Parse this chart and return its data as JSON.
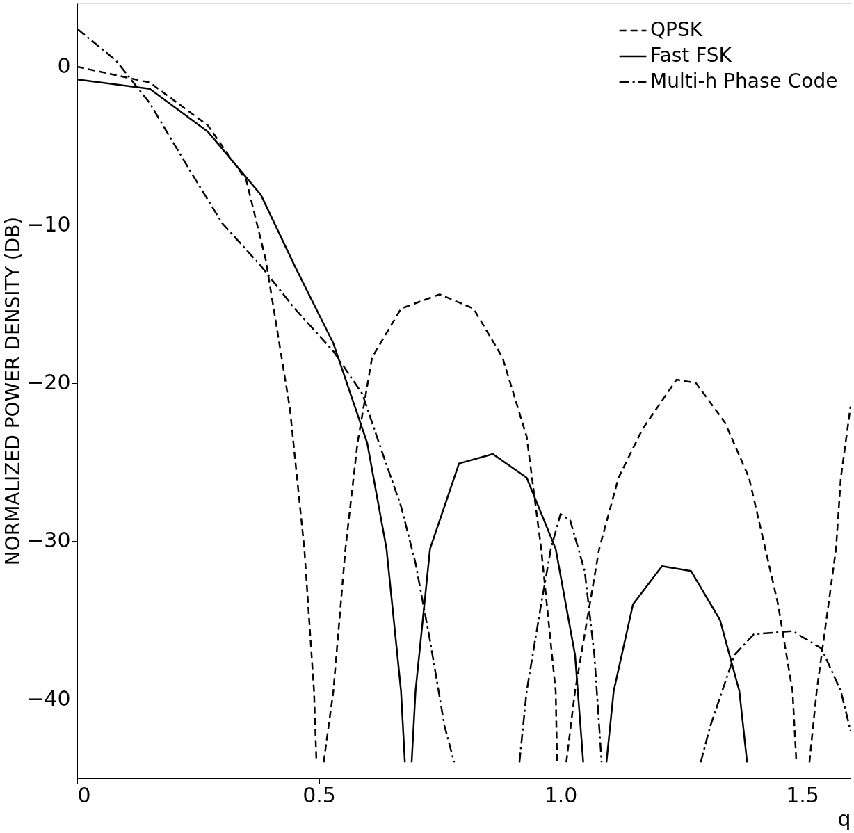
{
  "chart_data": {
    "type": "line",
    "xlabel": "q",
    "ylabel": "NORMALIZED POWER DENSITY (DB)",
    "xlim": [
      0,
      1.6
    ],
    "ylim": [
      -45,
      4
    ],
    "xticks": [
      0,
      0.5,
      {
        "value": 1,
        "label": "1.0"
      },
      1.5
    ],
    "yticks": [
      0,
      -10,
      -20,
      -30,
      -40
    ],
    "grid": false,
    "legend": "top right",
    "marker": "none",
    "series": [
      {
        "name": "QPSK",
        "color": "#000000",
        "line_style": "dashed",
        "x": [
          0,
          0.15,
          0.27,
          0.35,
          0.39,
          0.44,
          0.47,
          0.49,
          0.495,
          0.5,
          0.51,
          0.53,
          0.555,
          0.58,
          0.61,
          0.67,
          0.75,
          0.82,
          0.88,
          0.93,
          0.96,
          0.99,
          0.993,
          1.0,
          1.012,
          1.03,
          1.08,
          1.12,
          1.17,
          1.24,
          1.28,
          1.34,
          1.39,
          1.45,
          1.48,
          1.488,
          1.5,
          1.515,
          1.53,
          1.57,
          1.58,
          1.6
        ],
        "values": [
          0,
          -1,
          -3.7,
          -7.2,
          -12.2,
          -21.6,
          -30.5,
          -39.5,
          -44,
          null,
          -44,
          -39.5,
          -30.5,
          -23.8,
          -18.4,
          -15.3,
          -14.4,
          -15.3,
          -18.4,
          -23.4,
          -30.5,
          -39.5,
          -44,
          null,
          -44,
          -39.5,
          -30.5,
          -26,
          -22.9,
          -19.8,
          -20,
          -22.5,
          -26,
          -34,
          -39.5,
          -44,
          null,
          -44,
          -39.5,
          -30.5,
          -26,
          -21.5
        ]
      },
      {
        "name": "Fast FSK",
        "color": "#000000",
        "line_style": "solid",
        "x": [
          0,
          0.15,
          0.27,
          0.38,
          0.45,
          0.53,
          0.6,
          0.64,
          0.67,
          0.678,
          0.685,
          0.692,
          0.7,
          0.73,
          0.79,
          0.86,
          0.93,
          0.99,
          1.03,
          1.047,
          1.07,
          1.095,
          1.11,
          1.15,
          1.21,
          1.27,
          1.33,
          1.37,
          1.386
        ],
        "values": [
          -0.8,
          -1.4,
          -4.1,
          -8.1,
          -12.6,
          -17.5,
          -23.8,
          -30.5,
          -39.5,
          -44,
          null,
          -44,
          -39.5,
          -30.5,
          -25.1,
          -24.5,
          -26,
          -30.5,
          -37.2,
          -44,
          null,
          -44,
          -39.5,
          -34,
          -31.6,
          -31.9,
          -35,
          -39.5,
          -44
        ]
      },
      {
        "name": "Multi-h Phase Code",
        "color": "#000000",
        "line_style": "dashdot",
        "x": [
          0,
          0.08,
          0.15,
          0.23,
          0.3,
          0.38,
          0.45,
          0.53,
          0.59,
          0.63,
          0.67,
          0.7,
          0.73,
          0.76,
          0.78,
          0.85,
          0.915,
          0.93,
          0.96,
          0.98,
          1.0,
          1.02,
          1.05,
          1.07,
          1.085,
          1.2,
          1.29,
          1.31,
          1.36,
          1.4,
          1.48,
          1.54,
          1.58,
          1.6
        ],
        "values": [
          2.4,
          0.4,
          -2.3,
          -6.4,
          -9.9,
          -12.6,
          -15.3,
          -18,
          -20.7,
          -24.3,
          -27.8,
          -31.4,
          -36.3,
          -41.7,
          -44,
          null,
          -44,
          -39.5,
          -34,
          -30.5,
          -28.3,
          -28.7,
          -31.9,
          -37.2,
          -44,
          null,
          -44,
          -41.7,
          -37.2,
          -35.9,
          -35.7,
          -36.8,
          -39.5,
          -42
        ]
      }
    ]
  }
}
